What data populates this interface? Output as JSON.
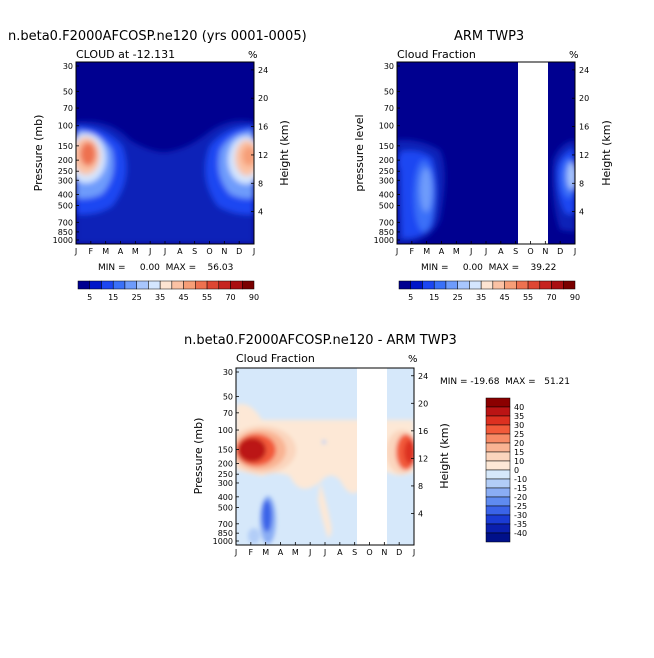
{
  "chart_data": [
    {
      "type": "heatmap",
      "title": "n.beta0.F2000AFCOSP.ne120 (yrs 0001-0005)",
      "subtitle_left": "CLOUD at -12.131",
      "subtitle_right": "%",
      "ylabel": "Pressure (mb)",
      "ylabel_right": "Height (km)",
      "x_ticks": [
        "J",
        "F",
        "M",
        "A",
        "M",
        "J",
        "J",
        "A",
        "S",
        "O",
        "N",
        "D",
        "J"
      ],
      "y_ticks": [
        "30",
        "50",
        "70",
        "100",
        "150",
        "200",
        "250",
        "300",
        "400",
        "500",
        "700",
        "850",
        "1000"
      ],
      "height_ticks": [
        "24",
        "20",
        "16",
        "12",
        "8",
        "4"
      ],
      "min_max_text": "MIN =     0.00  MAX =    56.03",
      "colorbar_labels": [
        "5",
        "15",
        "25",
        "35",
        "45",
        "55",
        "70",
        "90"
      ],
      "colorbar_colors": [
        "#000090",
        "#0016c8",
        "#1c46f2",
        "#3a70f8",
        "#6e9bfb",
        "#a8c6fd",
        "#d4e6fe",
        "#fde4d2",
        "#fbc2a4",
        "#f69e77",
        "#ee7150",
        "#de4633",
        "#c6241f",
        "#aa0f12",
        "#7a0000"
      ]
    },
    {
      "type": "heatmap",
      "title": "ARM TWP3",
      "subtitle_left": "Cloud Fraction",
      "subtitle_right": "%",
      "ylabel": "pressure level",
      "ylabel_right": "Height (km)",
      "x_ticks": [
        "J",
        "F",
        "M",
        "A",
        "M",
        "J",
        "J",
        "A",
        "S",
        "O",
        "N",
        "D",
        "J"
      ],
      "y_ticks": [
        "30",
        "50",
        "70",
        "100",
        "150",
        "200",
        "250",
        "300",
        "400",
        "500",
        "700",
        "850",
        "1000"
      ],
      "height_ticks": [
        "24",
        "20",
        "16",
        "12",
        "8",
        "4"
      ],
      "min_max_text": "MIN =     0.00  MAX =    39.22",
      "colorbar_labels": [
        "5",
        "15",
        "25",
        "35",
        "45",
        "55",
        "70",
        "90"
      ],
      "missing_months": [
        "S",
        "O"
      ]
    },
    {
      "type": "heatmap",
      "title": "n.beta0.F2000AFCOSP.ne120 - ARM TWP3",
      "subtitle_left": "Cloud Fraction",
      "subtitle_right": "%",
      "ylabel": "Pressure (mb)",
      "ylabel_right": "Height (km)",
      "x_ticks": [
        "J",
        "F",
        "M",
        "A",
        "M",
        "J",
        "J",
        "A",
        "S",
        "O",
        "N",
        "D",
        "J"
      ],
      "y_ticks": [
        "30",
        "50",
        "70",
        "100",
        "150",
        "200",
        "250",
        "300",
        "400",
        "500",
        "700",
        "850",
        "1000"
      ],
      "height_ticks": [
        "24",
        "20",
        "16",
        "12",
        "8",
        "4"
      ],
      "min_max_text": "MIN = -19.68  MAX =   51.21",
      "colorbar_labels": [
        "40",
        "35",
        "30",
        "25",
        "20",
        "15",
        "10",
        "0",
        "-10",
        "-15",
        "-20",
        "-25",
        "-30",
        "-35",
        "-40"
      ],
      "colorbar_colors": [
        "#8b0000",
        "#bb1414",
        "#dd3020",
        "#f25a3a",
        "#f78a66",
        "#f9b393",
        "#fbd5bd",
        "#fde8d6",
        "#d6e8fa",
        "#b2cdf7",
        "#8aadf4",
        "#5f8bf0",
        "#3a63e8",
        "#1a3bd4",
        "#0a1fae",
        "#00108a"
      ],
      "missing_months": [
        "S",
        "O"
      ]
    }
  ]
}
